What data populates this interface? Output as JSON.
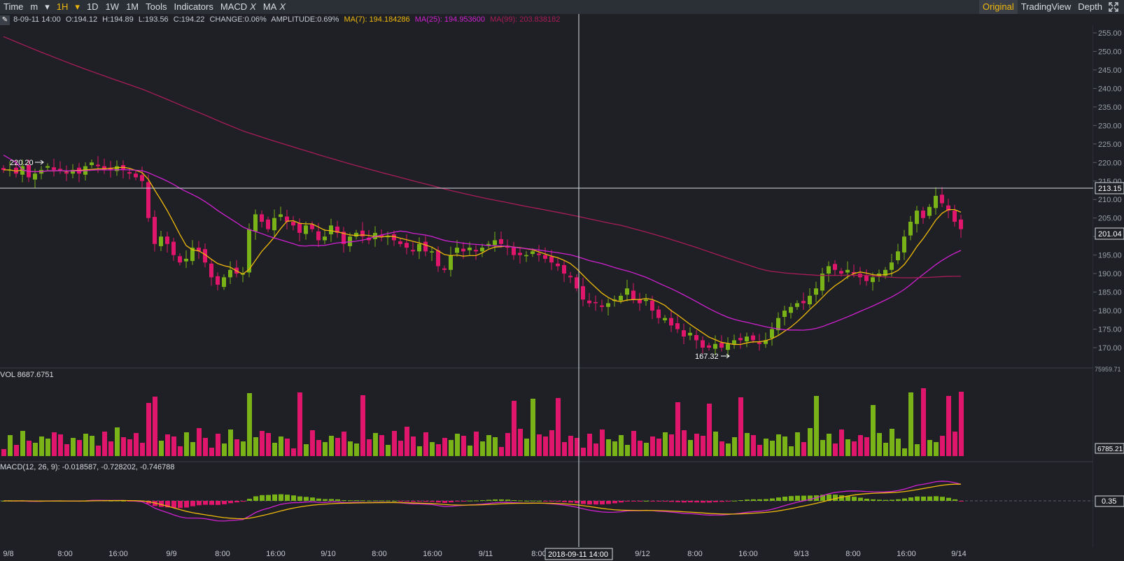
{
  "toolbar": {
    "items": [
      "Time",
      "m",
      "▾",
      "1H",
      "▾",
      "1D",
      "1W",
      "1M",
      "Tools",
      "Indicators"
    ],
    "active_interval": "1H",
    "macd_tab": "MACD",
    "ma_tab": "MA",
    "close_glyph": "X",
    "right": [
      "Original",
      "TradingView",
      "Depth"
    ],
    "active_view": "Original",
    "fullscreen_icon": "fullscreen-icon"
  },
  "ohlc_line": {
    "date": "8-09-11 14:00",
    "o": "O:194.12",
    "h": "H:194.89",
    "l": "L:193.56",
    "c": "C:194.22",
    "change": "CHANGE:0.06%",
    "amplitude": "AMPLITUDE:0.69%",
    "ma7": "MA(7): 194.184286",
    "ma25": "MA(25): 194.953600",
    "ma99": "MA(99): 203.838182"
  },
  "colors": {
    "up": "#7ab317",
    "down": "#e0156c",
    "ma7": "#f0b90b",
    "ma25": "#d020d0",
    "ma99": "#a81c57",
    "background": "#1e2026"
  },
  "price_axis": {
    "ticks": [
      "255.00",
      "250.00",
      "245.00",
      "240.00",
      "235.00",
      "230.00",
      "225.00",
      "220.00",
      "215.00",
      "210.00",
      "205.00",
      "200.00",
      "195.00",
      "190.00",
      "185.00",
      "180.00",
      "175.00",
      "170.00"
    ],
    "crosshair_price": "213.15",
    "last_price": "201.04",
    "high_marker": "220.20",
    "low_marker": "167.32"
  },
  "volume": {
    "label": "VOL 8687.6751",
    "max_label": "75959.71",
    "min_label": "6785.21"
  },
  "macd": {
    "label": "MACD(12, 26, 9): -0.018587, -0.728202, -0.746788",
    "zero_label": "0.35"
  },
  "time_axis": {
    "ticks": [
      "9/8",
      "8:00",
      "16:00",
      "9/9",
      "8:00",
      "16:00",
      "9/10",
      "8:00",
      "16:00",
      "9/11",
      "8:00",
      "9/12",
      "8:00",
      "16:00",
      "9/13",
      "8:00",
      "16:00",
      "9/14"
    ],
    "crosshair_time": "2018-09-11 14:00"
  },
  "chart_data": {
    "type": "candlestick",
    "interval": "1H",
    "price_range": [
      168,
      256
    ],
    "candles_close": [
      218,
      218,
      217,
      219,
      216,
      217,
      218,
      219,
      218,
      218,
      217,
      218,
      217,
      219,
      220,
      219,
      218,
      218,
      219,
      218,
      217,
      216,
      215,
      205,
      198,
      200,
      198,
      195,
      193,
      194,
      197,
      196,
      193,
      189,
      187,
      189,
      191,
      190,
      190,
      202,
      206,
      204,
      202,
      205,
      206,
      204,
      203,
      201,
      203,
      202,
      199,
      200,
      203,
      201,
      198,
      200,
      201,
      200,
      199,
      201,
      200,
      200,
      199,
      198,
      197,
      196,
      198,
      196,
      196,
      192,
      191,
      195,
      197,
      196,
      197,
      196,
      197,
      198,
      199,
      198,
      197,
      195,
      195,
      195,
      196,
      195,
      194,
      193,
      192,
      190,
      189,
      186,
      183,
      182,
      182,
      181,
      182,
      183,
      184,
      186,
      183,
      182,
      183,
      180,
      178,
      178,
      176,
      175,
      173,
      174,
      172,
      170,
      170,
      171,
      170,
      171,
      172,
      172,
      173,
      172,
      171,
      172,
      175,
      178,
      180,
      181,
      182,
      182,
      184,
      186,
      190,
      192,
      191,
      190,
      191,
      190,
      189,
      188,
      189,
      190,
      191,
      193,
      196,
      200,
      204,
      207,
      205,
      208,
      211,
      209,
      207,
      204,
      202
    ]
  }
}
